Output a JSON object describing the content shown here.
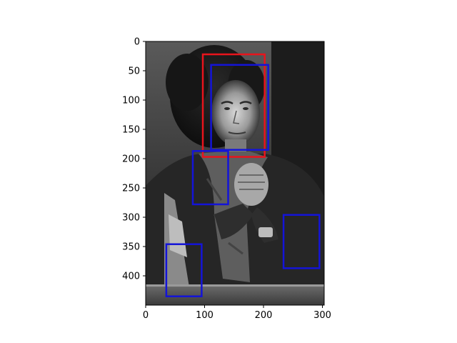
{
  "chart_data": {
    "type": "image-with-bounding-boxes",
    "title": "",
    "xlabel": "",
    "ylabel": "",
    "image": {
      "description_name": "grayscale-photo-woman-clasped-hands",
      "width": 303,
      "height": 450
    },
    "xlim": [
      0,
      303
    ],
    "ylim": [
      450,
      0
    ],
    "x_ticks": [
      0,
      100,
      200,
      300
    ],
    "y_ticks": [
      0,
      50,
      100,
      150,
      200,
      250,
      300,
      350,
      400
    ],
    "colors": {
      "red": "#e8141c",
      "blue": "#1414d8"
    },
    "boxes": [
      {
        "name": "face-detection-box",
        "color": "red",
        "x0": 97,
        "y0": 22,
        "x1": 202,
        "y1": 197
      },
      {
        "name": "face-box",
        "color": "blue",
        "x0": 111,
        "y0": 40,
        "x1": 208,
        "y1": 185
      },
      {
        "name": "hands-box",
        "color": "blue",
        "x0": 80,
        "y0": 187,
        "x1": 140,
        "y1": 278
      },
      {
        "name": "right-edge-box",
        "color": "blue",
        "x0": 234,
        "y0": 296,
        "x1": 295,
        "y1": 387
      },
      {
        "name": "lower-left-box",
        "color": "blue",
        "x0": 35,
        "y0": 346,
        "x1": 95,
        "y1": 435
      }
    ]
  }
}
